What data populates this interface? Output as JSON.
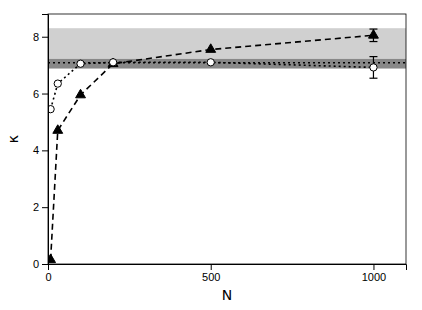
{
  "chart_data": {
    "type": "line",
    "xlabel": "N",
    "ylabel": "κ",
    "xlim": [
      0,
      1100
    ],
    "ylim": [
      0,
      8.8
    ],
    "xticks": [
      0,
      500,
      1000
    ],
    "yticks": [
      0,
      2,
      4,
      6,
      8
    ],
    "grid": false,
    "x": [
      8,
      30,
      100,
      200,
      500,
      1000
    ],
    "series": [
      {
        "color": "#000000",
        "marker": "triangle",
        "line_style": "dashed",
        "values": [
          0.15,
          4.7,
          5.95,
          7.05,
          7.55,
          8.05
        ],
        "errors": [
          null,
          null,
          null,
          null,
          null,
          0.22
        ]
      },
      {
        "color": "#000000",
        "marker": "hollow-circle",
        "line_style": "dotted",
        "values": [
          5.45,
          6.35,
          7.05,
          7.1,
          7.1,
          6.92
        ],
        "errors": [
          null,
          null,
          null,
          null,
          null,
          0.38
        ]
      }
    ],
    "bands": [
      {
        "ymin": 7.22,
        "ymax": 8.3,
        "color": "#d0d0d0"
      },
      {
        "ymin": 6.88,
        "ymax": 7.22,
        "color": "#888888"
      }
    ],
    "reference_line": 7.08
  }
}
